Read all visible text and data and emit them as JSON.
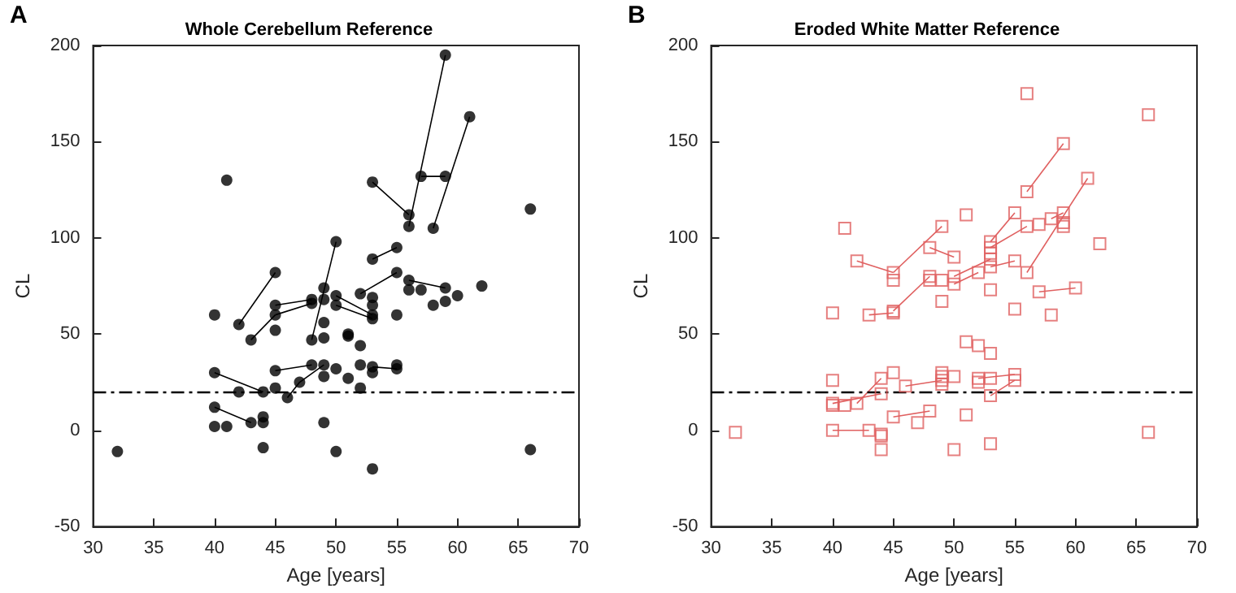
{
  "chart_data": [
    {
      "type": "scatter",
      "title": "Whole Cerebellum Reference",
      "xlabel": "Age [years]",
      "ylabel": "CL",
      "annotations": [
        "A"
      ],
      "xlim": [
        30,
        70
      ],
      "xticks": [
        30,
        35,
        40,
        45,
        50,
        55,
        60,
        65,
        70
      ],
      "ylim": [
        -50,
        200
      ],
      "yticks": [
        -50,
        0,
        50,
        100,
        150,
        200
      ],
      "grid": false,
      "ref_lines": [
        {
          "axis": "y",
          "value": 20,
          "color": "#000000",
          "line_style": "dashed"
        }
      ],
      "series": [
        {
          "type": "scatter",
          "color": "#000000",
          "marker": "circle",
          "x": [
            32,
            41,
            40,
            40,
            40,
            40,
            41,
            42,
            45,
            43,
            45,
            45,
            45,
            48,
            48,
            49,
            49,
            49,
            49,
            48,
            50,
            45,
            48,
            49,
            49,
            50,
            42,
            44,
            45,
            46,
            47,
            43,
            44,
            44,
            44,
            49,
            50,
            59,
            56,
            56,
            61,
            58,
            57,
            59,
            53,
            66,
            55,
            53,
            55,
            52,
            56,
            56,
            57,
            59,
            59,
            58,
            60,
            62,
            50,
            50,
            53,
            53,
            53,
            53,
            55,
            51,
            51,
            52,
            52,
            53,
            53,
            55,
            55,
            51,
            52,
            53,
            66
          ],
          "values": [
            -11,
            130,
            60,
            30,
            12,
            2,
            2,
            55,
            82,
            47,
            65,
            60,
            52,
            68,
            66,
            74,
            68,
            56,
            48,
            47,
            98,
            31,
            34,
            34,
            28,
            32,
            20,
            20,
            22,
            17,
            25,
            4,
            4,
            7,
            -9,
            4,
            -11,
            195,
            112,
            106,
            163,
            105,
            132,
            132,
            129,
            115,
            95,
            89,
            82,
            71,
            78,
            73,
            73,
            74,
            67,
            65,
            70,
            75,
            70,
            65,
            69,
            65,
            60,
            58,
            60,
            50,
            49,
            44,
            34,
            33,
            30,
            34,
            32,
            27,
            22,
            -20,
            -10
          ]
        },
        {
          "type": "line",
          "color": "#000000",
          "marker": "none",
          "x": [
            42,
            45
          ],
          "values": [
            55,
            82
          ]
        },
        {
          "type": "line",
          "color": "#000000",
          "marker": "none",
          "x": [
            43,
            45
          ],
          "values": [
            47,
            60
          ]
        },
        {
          "type": "line",
          "color": "#000000",
          "marker": "none",
          "x": [
            45,
            48
          ],
          "values": [
            65,
            68
          ]
        },
        {
          "type": "line",
          "color": "#000000",
          "marker": "none",
          "x": [
            45,
            48
          ],
          "values": [
            60,
            66
          ]
        },
        {
          "type": "line",
          "color": "#000000",
          "marker": "none",
          "x": [
            48,
            50
          ],
          "values": [
            47,
            98
          ]
        },
        {
          "type": "line",
          "color": "#000000",
          "marker": "none",
          "x": [
            45,
            48
          ],
          "values": [
            31,
            34
          ]
        },
        {
          "type": "line",
          "color": "#000000",
          "marker": "none",
          "x": [
            40,
            44
          ],
          "values": [
            30,
            20
          ]
        },
        {
          "type": "line",
          "color": "#000000",
          "marker": "none",
          "x": [
            46,
            47,
            49
          ],
          "values": [
            17,
            25,
            34
          ]
        },
        {
          "type": "line",
          "color": "#000000",
          "marker": "none",
          "x": [
            40,
            43
          ],
          "values": [
            12,
            4
          ]
        },
        {
          "type": "line",
          "color": "#000000",
          "marker": "none",
          "x": [
            56,
            59
          ],
          "values": [
            106,
            195
          ]
        },
        {
          "type": "line",
          "color": "#000000",
          "marker": "none",
          "x": [
            53,
            56
          ],
          "values": [
            129,
            112
          ]
        },
        {
          "type": "line",
          "color": "#000000",
          "marker": "none",
          "x": [
            58,
            61
          ],
          "values": [
            105,
            163
          ]
        },
        {
          "type": "line",
          "color": "#000000",
          "marker": "none",
          "x": [
            57,
            59
          ],
          "values": [
            132,
            132
          ]
        },
        {
          "type": "line",
          "color": "#000000",
          "marker": "none",
          "x": [
            53,
            55
          ],
          "values": [
            89,
            95
          ]
        },
        {
          "type": "line",
          "color": "#000000",
          "marker": "none",
          "x": [
            52,
            55
          ],
          "values": [
            71,
            82
          ]
        },
        {
          "type": "line",
          "color": "#000000",
          "marker": "none",
          "x": [
            56,
            59
          ],
          "values": [
            78,
            74
          ]
        },
        {
          "type": "line",
          "color": "#000000",
          "marker": "none",
          "x": [
            50,
            53
          ],
          "values": [
            70,
            60
          ]
        },
        {
          "type": "line",
          "color": "#000000",
          "marker": "none",
          "x": [
            50,
            53
          ],
          "values": [
            65,
            58
          ]
        },
        {
          "type": "line",
          "color": "#000000",
          "marker": "none",
          "x": [
            53,
            55
          ],
          "values": [
            33,
            32
          ]
        }
      ]
    },
    {
      "type": "scatter",
      "title": "Eroded White Matter Reference",
      "xlabel": "Age [years]",
      "ylabel": "CL",
      "annotations": [
        "B"
      ],
      "xlim": [
        30,
        70
      ],
      "xticks": [
        30,
        35,
        40,
        45,
        50,
        55,
        60,
        65,
        70
      ],
      "ylim": [
        -50,
        200
      ],
      "yticks": [
        -50,
        0,
        50,
        100,
        150,
        200
      ],
      "grid": false,
      "ref_lines": [
        {
          "axis": "y",
          "value": 20,
          "color": "#000000",
          "line_style": "dashed"
        }
      ],
      "series": [
        {
          "type": "scatter",
          "color": "#e06060",
          "marker": "square",
          "x": [
            32,
            41,
            40,
            43,
            45,
            45,
            42,
            45,
            45,
            48,
            48,
            49,
            40,
            40,
            40,
            41,
            42,
            44,
            44,
            45,
            46,
            49,
            40,
            43,
            44,
            44,
            44,
            45,
            48,
            47,
            56,
            66,
            59,
            56,
            61,
            56,
            51,
            55,
            53,
            56,
            53,
            57,
            58,
            59,
            59,
            59,
            62,
            50,
            53,
            53,
            55,
            53,
            52,
            50,
            50,
            48,
            49,
            53,
            49,
            57,
            60,
            55,
            58,
            51,
            52,
            53,
            50,
            49,
            49,
            49,
            52,
            52,
            53,
            55,
            55,
            53,
            51,
            50,
            53,
            66
          ],
          "values": [
            -1,
            105,
            61,
            60,
            62,
            61,
            88,
            82,
            78,
            95,
            80,
            106,
            26,
            14,
            13,
            13,
            14,
            27,
            19,
            30,
            23,
            26,
            0,
            0,
            -2,
            -3,
            -10,
            7,
            10,
            4,
            175,
            164,
            149,
            124,
            131,
            82,
            112,
            113,
            98,
            106,
            95,
            107,
            110,
            113,
            108,
            106,
            97,
            90,
            92,
            89,
            88,
            85,
            82,
            80,
            76,
            78,
            78,
            73,
            67,
            72,
            74,
            63,
            60,
            46,
            44,
            40,
            28,
            30,
            28,
            24,
            27,
            25,
            27,
            29,
            26,
            18,
            8,
            -10,
            -7,
            -1
          ]
        },
        {
          "type": "line",
          "color": "#e06060",
          "marker": "none",
          "x": [
            43,
            45
          ],
          "values": [
            60,
            61
          ]
        },
        {
          "type": "line",
          "color": "#e06060",
          "marker": "none",
          "x": [
            45,
            48
          ],
          "values": [
            62,
            80
          ]
        },
        {
          "type": "line",
          "color": "#e06060",
          "marker": "none",
          "x": [
            42,
            45
          ],
          "values": [
            88,
            82
          ]
        },
        {
          "type": "line",
          "color": "#e06060",
          "marker": "none",
          "x": [
            45,
            49
          ],
          "values": [
            82,
            106
          ]
        },
        {
          "type": "line",
          "color": "#e06060",
          "marker": "none",
          "x": [
            42,
            44
          ],
          "values": [
            14,
            27
          ]
        },
        {
          "type": "line",
          "color": "#e06060",
          "marker": "none",
          "x": [
            40,
            44
          ],
          "values": [
            14,
            19
          ]
        },
        {
          "type": "line",
          "color": "#e06060",
          "marker": "none",
          "x": [
            46,
            49
          ],
          "values": [
            23,
            26
          ]
        },
        {
          "type": "line",
          "color": "#e06060",
          "marker": "none",
          "x": [
            40,
            43
          ],
          "values": [
            0,
            0
          ]
        },
        {
          "type": "line",
          "color": "#e06060",
          "marker": "none",
          "x": [
            45,
            48
          ],
          "values": [
            7,
            10
          ]
        },
        {
          "type": "line",
          "color": "#e06060",
          "marker": "none",
          "x": [
            56,
            59
          ],
          "values": [
            124,
            149
          ]
        },
        {
          "type": "line",
          "color": "#e06060",
          "marker": "none",
          "x": [
            56,
            61
          ],
          "values": [
            82,
            131
          ]
        },
        {
          "type": "line",
          "color": "#e06060",
          "marker": "none",
          "x": [
            53,
            55
          ],
          "values": [
            98,
            113
          ]
        },
        {
          "type": "line",
          "color": "#e06060",
          "marker": "none",
          "x": [
            53,
            56
          ],
          "values": [
            95,
            106
          ]
        },
        {
          "type": "line",
          "color": "#e06060",
          "marker": "none",
          "x": [
            58,
            59
          ],
          "values": [
            110,
            113
          ]
        },
        {
          "type": "line",
          "color": "#e06060",
          "marker": "none",
          "x": [
            48,
            50
          ],
          "values": [
            95,
            90
          ]
        },
        {
          "type": "line",
          "color": "#e06060",
          "marker": "none",
          "x": [
            50,
            53
          ],
          "values": [
            80,
            89
          ]
        },
        {
          "type": "line",
          "color": "#e06060",
          "marker": "none",
          "x": [
            53,
            55
          ],
          "values": [
            85,
            88
          ]
        },
        {
          "type": "line",
          "color": "#e06060",
          "marker": "none",
          "x": [
            50,
            52
          ],
          "values": [
            76,
            82
          ]
        },
        {
          "type": "line",
          "color": "#e06060",
          "marker": "none",
          "x": [
            57,
            60
          ],
          "values": [
            72,
            74
          ]
        },
        {
          "type": "line",
          "color": "#e06060",
          "marker": "none",
          "x": [
            52,
            55
          ],
          "values": [
            27,
            29
          ]
        },
        {
          "type": "line",
          "color": "#e06060",
          "marker": "none",
          "x": [
            53,
            55
          ],
          "values": [
            18,
            26
          ]
        }
      ]
    }
  ]
}
